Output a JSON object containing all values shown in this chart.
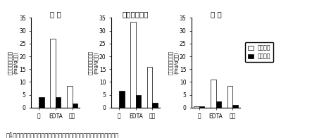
{
  "panels": [
    {
      "title": "紅 玉",
      "ylim": [
        0,
        35
      ],
      "yticks": [
        0,
        5,
        10,
        15,
        20,
        25,
        30,
        35
      ],
      "categories": [
        "水",
        "EDTA",
        "塩酸"
      ],
      "healthy": [
        0,
        27,
        8.5
      ],
      "diseased": [
        4,
        4,
        1.5
      ]
    },
    {
      "title": "スターキング",
      "ylim": [
        0,
        35
      ],
      "yticks": [
        0,
        5,
        10,
        15,
        20,
        25,
        30,
        35
      ],
      "categories": [
        "水",
        "EDTA",
        "塩酸"
      ],
      "healthy": [
        0,
        33.5,
        16
      ],
      "diseased": [
        6.5,
        5,
        2
      ]
    },
    {
      "title": "ふ じ",
      "ylim": [
        0,
        35
      ],
      "yticks": [
        0,
        5,
        10,
        15,
        20,
        25,
        30,
        35
      ],
      "categories": [
        "水",
        "EDTA",
        "塩酸"
      ],
      "healthy": [
        0.5,
        11,
        8.5
      ],
      "diseased": [
        0.5,
        2.5,
        1
      ]
    }
  ],
  "ylabel_lines": [
    "ガラクチュロン酸",
    "(mg/g乾物)"
  ],
  "legend_healthy": "健全樹皮",
  "legend_diseased": "り病樹皮",
  "caption": "図1　腐らん病病斑及び健全樹皮から各種溶媒に抽出されるペクチン量",
  "healthy_color": "white",
  "diseased_color": "black",
  "bar_edge_color": "black",
  "bar_width": 0.32,
  "title_fontsize": 7.5,
  "label_fontsize": 5,
  "tick_fontsize": 5.5,
  "caption_fontsize": 6,
  "legend_fontsize": 5.5
}
